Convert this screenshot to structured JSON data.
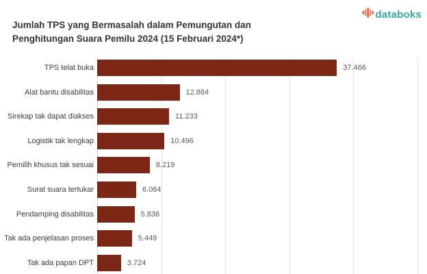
{
  "logo": {
    "text": "databoks",
    "text_color": "#35a79e",
    "icon": "pulse-bars-icon",
    "icon_colors": [
      "#e94f35",
      "#f2805a"
    ]
  },
  "chart_data": {
    "type": "bar",
    "orientation": "horizontal",
    "title": "Jumlah TPS yang Bermasalah dalam Pemungutan dan Penghitungan Suara Pemilu 2024 (15 Februari 2024*)",
    "title_lines": [
      "Jumlah TPS yang Bermasalah dalam Pemungutan dan",
      "Penghitungan Suara Pemilu 2024 (15 Februari 2024*)"
    ],
    "categories": [
      "TPS telat buka",
      "Alat bantu disabilitas",
      "Sirekap tak dapat diakses",
      "Logistik tak lengkap",
      "Pemilih khusus tak sesuai",
      "Surat suara tertukar",
      "Pendamping disabilitas",
      "Tak ada penjelasan proses",
      "Tak ada papan DPT"
    ],
    "values": [
      37466,
      12884,
      11233,
      10496,
      8219,
      6084,
      5836,
      5449,
      3724
    ],
    "value_labels": [
      "37.466",
      "12.884",
      "11.233",
      "10.496",
      "8.219",
      "6.084",
      "5.836",
      "5.449",
      "3.724"
    ],
    "xlabel": "",
    "ylabel": "",
    "xlim": [
      0,
      50000
    ],
    "tick_interval": 10000,
    "grid": true,
    "bar_color": "#7c2616",
    "legend": "none"
  }
}
